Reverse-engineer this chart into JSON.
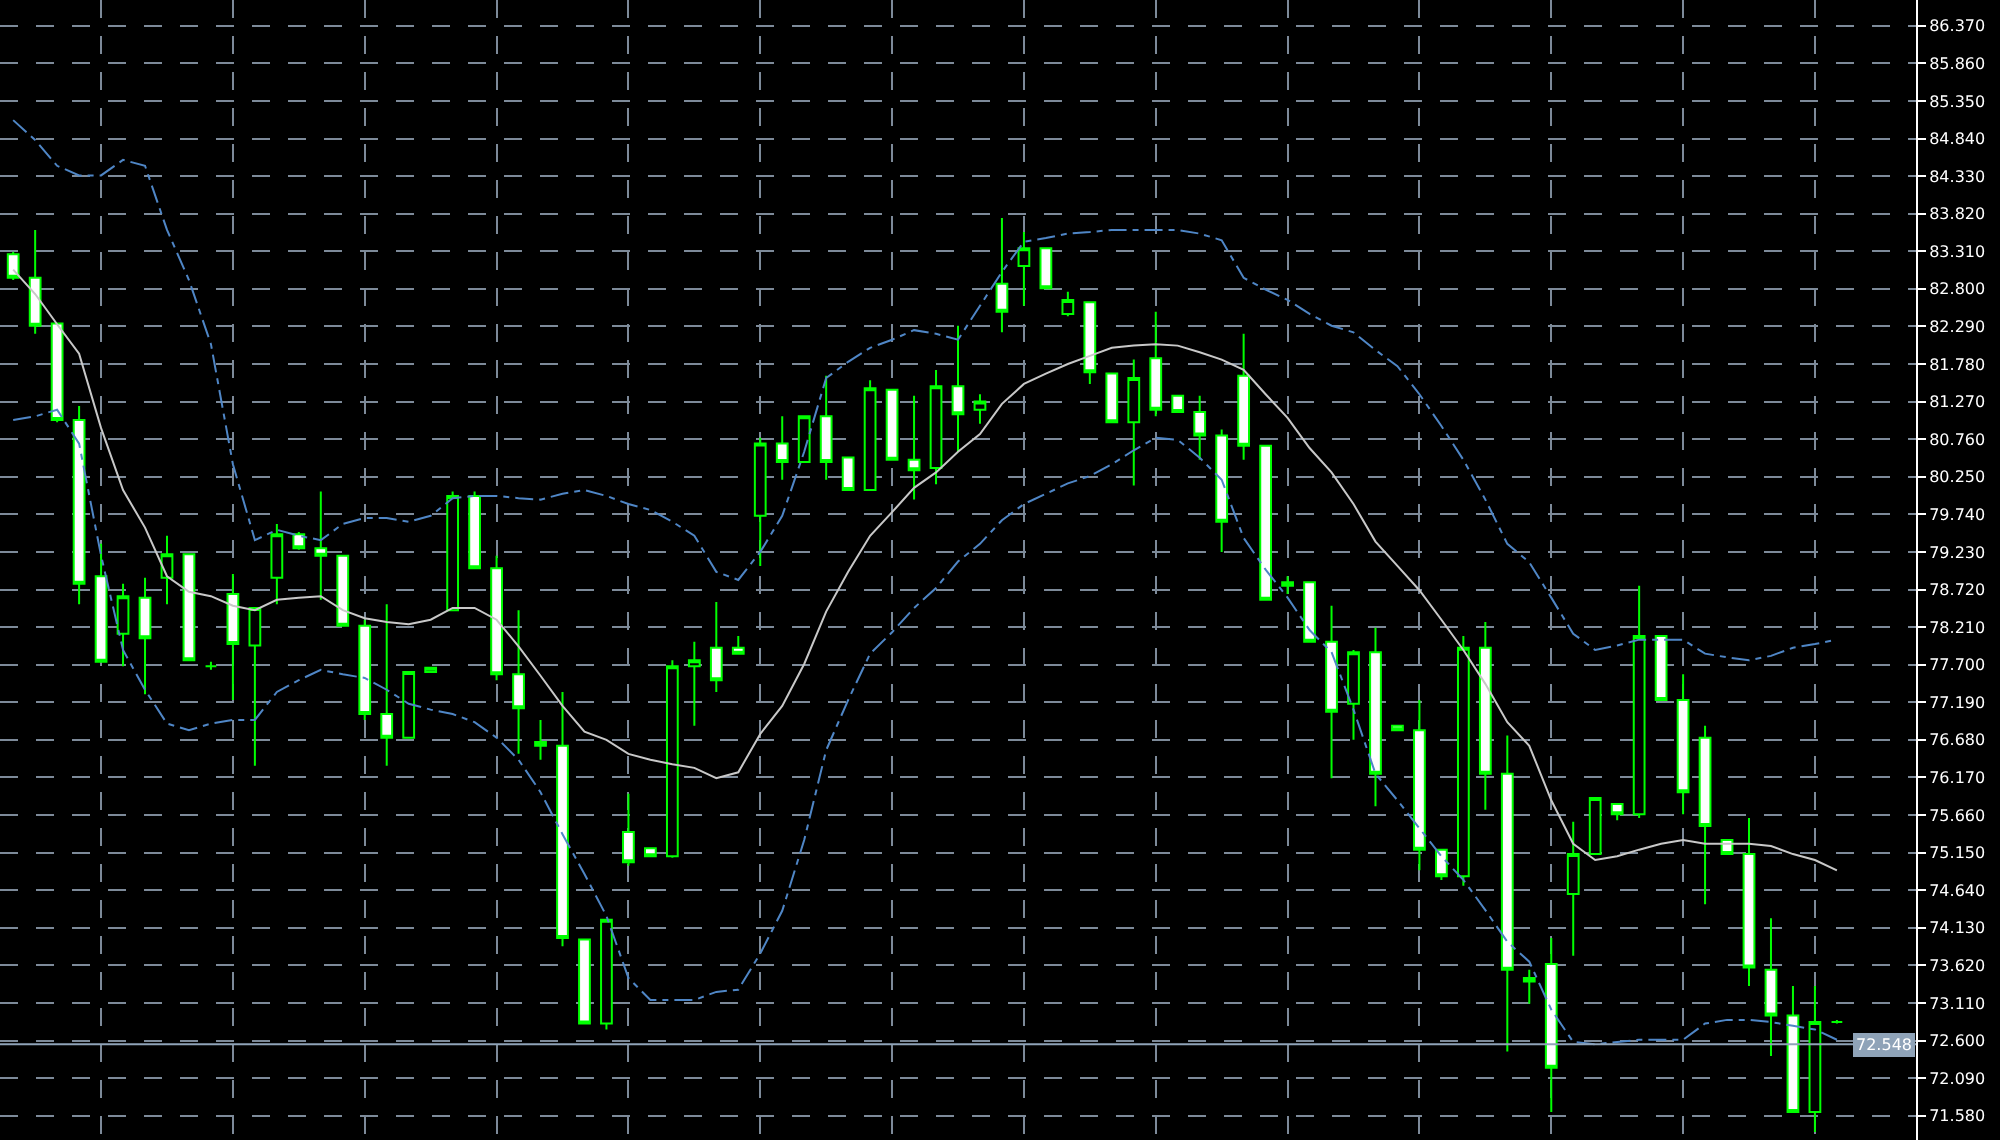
{
  "chart_data": {
    "type": "candlestick",
    "categories": [
      null,
      null,
      null,
      null,
      null,
      null,
      null,
      null,
      null,
      null,
      null,
      null,
      null,
      null,
      null,
      null,
      null,
      null,
      null,
      null,
      null,
      null,
      null,
      null,
      null,
      null,
      null,
      null,
      null,
      null,
      null,
      null,
      null,
      null,
      null,
      null,
      null,
      null,
      null,
      null,
      null,
      null,
      null,
      null,
      null,
      null,
      null,
      null,
      null,
      null,
      null,
      null,
      null,
      null,
      null,
      null,
      null,
      null,
      null,
      null,
      null,
      null,
      null,
      null,
      null,
      null,
      null,
      null,
      null,
      null,
      null,
      null,
      null,
      null,
      null,
      null,
      null,
      null,
      null,
      null,
      null,
      null,
      null,
      null
    ],
    "ohlc": [
      [
        83.27,
        83.3,
        82.92,
        82.95
      ],
      [
        82.95,
        83.6,
        82.19,
        82.3
      ],
      [
        82.33,
        82.33,
        80.99,
        81.02
      ],
      [
        81.02,
        81.21,
        78.52,
        78.8
      ],
      [
        78.9,
        79.34,
        77.74,
        77.74
      ],
      [
        78.12,
        78.8,
        77.68,
        78.63
      ],
      [
        78.61,
        78.88,
        77.3,
        78.06
      ],
      [
        78.88,
        79.45,
        78.52,
        79.2
      ],
      [
        79.2,
        79.2,
        77.76,
        77.76
      ],
      [
        77.68,
        77.74,
        77.63,
        77.68
      ],
      [
        78.66,
        78.93,
        77.22,
        77.98
      ],
      [
        77.96,
        78.47,
        76.33,
        78.47
      ],
      [
        78.88,
        79.61,
        78.52,
        79.47
      ],
      [
        79.47,
        79.5,
        79.26,
        79.28
      ],
      [
        79.28,
        80.05,
        78.58,
        79.18
      ],
      [
        79.18,
        79.18,
        78.23,
        78.23
      ],
      [
        78.23,
        78.31,
        76.95,
        77.03
      ],
      [
        77.03,
        78.52,
        76.33,
        76.71
      ],
      [
        76.71,
        77.6,
        76.71,
        77.6
      ],
      [
        77.6,
        77.66,
        77.6,
        77.66
      ],
      [
        78.44,
        80.05,
        78.44,
        79.99
      ],
      [
        79.99,
        80.05,
        79.01,
        79.01
      ],
      [
        79.01,
        79.18,
        77.49,
        77.57
      ],
      [
        77.57,
        78.44,
        76.49,
        77.11
      ],
      [
        76.65,
        76.95,
        76.41,
        76.6
      ],
      [
        76.6,
        77.33,
        73.88,
        73.99
      ],
      [
        73.97,
        73.97,
        72.83,
        72.83
      ],
      [
        72.83,
        74.24,
        72.75,
        74.24
      ],
      [
        75.43,
        75.95,
        74.97,
        75.02
      ],
      [
        75.21,
        75.21,
        75.1,
        75.1
      ],
      [
        75.1,
        77.76,
        75.08,
        77.68
      ],
      [
        77.68,
        78.01,
        76.87,
        77.76
      ],
      [
        77.93,
        78.55,
        77.33,
        77.49
      ],
      [
        77.93,
        78.09,
        77.85,
        77.85
      ],
      [
        79.72,
        80.78,
        79.04,
        80.7
      ],
      [
        80.7,
        81.07,
        80.21,
        80.45
      ],
      [
        80.45,
        81.07,
        80.45,
        81.07
      ],
      [
        81.07,
        81.62,
        80.21,
        80.45
      ],
      [
        80.51,
        80.51,
        80.07,
        80.07
      ],
      [
        80.07,
        81.56,
        80.07,
        81.45
      ],
      [
        81.43,
        81.43,
        80.48,
        80.48
      ],
      [
        80.48,
        81.35,
        79.94,
        80.34
      ],
      [
        80.37,
        81.7,
        80.15,
        81.48
      ],
      [
        81.48,
        82.3,
        80.59,
        81.1
      ],
      [
        81.16,
        81.37,
        80.97,
        81.27
      ],
      [
        82.87,
        83.76,
        82.21,
        82.49
      ],
      [
        83.11,
        83.57,
        82.57,
        83.35
      ],
      [
        83.35,
        83.35,
        82.81,
        82.81
      ],
      [
        82.46,
        82.76,
        82.43,
        82.65
      ],
      [
        82.62,
        82.62,
        81.51,
        81.67
      ],
      [
        81.65,
        81.65,
        80.99,
        80.99
      ],
      [
        80.99,
        81.84,
        80.13,
        81.59
      ],
      [
        81.86,
        82.49,
        81.07,
        81.16
      ],
      [
        81.35,
        81.35,
        81.13,
        81.13
      ],
      [
        81.13,
        81.35,
        80.48,
        80.81
      ],
      [
        80.81,
        80.89,
        79.23,
        79.64
      ],
      [
        81.62,
        82.19,
        80.48,
        80.67
      ],
      [
        80.67,
        80.67,
        78.58,
        78.58
      ],
      [
        78.82,
        78.9,
        78.66,
        78.77
      ],
      [
        78.82,
        78.82,
        78.01,
        78.01
      ],
      [
        78.01,
        78.5,
        76.16,
        77.06
      ],
      [
        77.17,
        77.9,
        76.68,
        77.87
      ],
      [
        77.87,
        78.2,
        75.78,
        76.22
      ],
      [
        76.87,
        76.87,
        76.81,
        76.81
      ],
      [
        76.81,
        77.22,
        74.91,
        75.19
      ],
      [
        75.19,
        75.19,
        74.78,
        74.83
      ],
      [
        74.83,
        78.09,
        74.7,
        77.93
      ],
      [
        77.93,
        78.28,
        75.73,
        76.22
      ],
      [
        76.22,
        76.74,
        72.45,
        73.56
      ],
      [
        73.45,
        73.56,
        73.1,
        73.4
      ],
      [
        73.64,
        73.99,
        71.63,
        72.23
      ],
      [
        74.59,
        75.57,
        73.75,
        75.13
      ],
      [
        75.13,
        75.89,
        75.13,
        75.89
      ],
      [
        75.81,
        75.81,
        75.59,
        75.67
      ],
      [
        75.67,
        78.77,
        75.62,
        78.09
      ],
      [
        78.09,
        78.09,
        77.22,
        77.22
      ],
      [
        77.22,
        77.57,
        75.67,
        75.97
      ],
      [
        76.71,
        76.87,
        74.45,
        75.51
      ],
      [
        75.32,
        75.32,
        75.13,
        75.13
      ],
      [
        75.13,
        75.62,
        73.34,
        73.59
      ],
      [
        73.56,
        74.26,
        72.39,
        72.94
      ],
      [
        72.94,
        73.34,
        71.63,
        71.63
      ],
      [
        71.63,
        73.34,
        71.36,
        72.85
      ],
      [
        72.85,
        72.88,
        72.83,
        72.85
      ]
    ],
    "series": [
      {
        "type": "line",
        "color": "#4f86c6",
        "line_style": "dashed",
        "values": [
          85.09,
          84.82,
          84.47,
          84.34,
          84.34,
          84.55,
          84.47,
          83.6,
          82.92,
          82.05,
          80.42,
          79.39,
          79.53,
          79.45,
          79.39,
          79.61,
          79.69,
          79.69,
          79.64,
          79.72,
          79.96,
          79.99,
          79.99,
          79.96,
          79.94,
          80.02,
          80.07,
          79.99,
          79.88,
          79.8,
          79.64,
          79.45,
          78.96,
          78.85,
          79.23,
          79.72,
          80.59,
          81.59,
          81.81,
          82.0,
          82.11,
          82.24,
          82.19,
          82.11,
          82.57,
          83.03,
          83.44,
          83.49,
          83.55,
          83.57,
          83.6,
          83.6,
          83.6,
          83.6,
          83.55,
          83.46,
          82.95,
          82.79,
          82.65,
          82.46,
          82.3,
          82.21,
          81.97,
          81.75,
          81.37,
          80.94,
          80.48,
          79.94,
          79.34,
          79.09,
          78.61,
          78.12,
          77.9,
          77.96,
          78.04,
          78.04,
          78.04,
          77.85,
          77.8,
          77.76,
          77.82,
          77.93,
          77.98,
          78.04
        ]
      },
      {
        "type": "line",
        "color": "#c8c8c8",
        "line_style": "solid",
        "values": [
          83.06,
          82.73,
          82.32,
          81.92,
          80.91,
          80.07,
          79.56,
          78.9,
          78.69,
          78.63,
          78.5,
          78.44,
          78.58,
          78.61,
          78.63,
          78.44,
          78.33,
          78.28,
          78.25,
          78.31,
          78.47,
          78.47,
          78.31,
          77.95,
          77.55,
          77.14,
          76.79,
          76.68,
          76.49,
          76.41,
          76.35,
          76.3,
          76.16,
          76.24,
          76.76,
          77.14,
          77.71,
          78.42,
          78.96,
          79.45,
          79.77,
          80.1,
          80.31,
          80.59,
          80.83,
          81.24,
          81.51,
          81.65,
          81.78,
          81.89,
          82.0,
          82.03,
          82.05,
          82.03,
          81.94,
          81.84,
          81.7,
          81.37,
          81.05,
          80.64,
          80.31,
          79.88,
          79.37,
          79.04,
          78.71,
          78.31,
          77.9,
          77.44,
          76.92,
          76.6,
          75.86,
          75.27,
          75.05,
          75.1,
          75.19,
          75.27,
          75.32,
          75.27,
          75.27,
          75.27,
          75.24,
          75.13,
          75.05,
          74.91
        ]
      },
      {
        "type": "line",
        "color": "#4f86c6",
        "line_style": "dashed",
        "values": [
          81.02,
          81.07,
          81.16,
          80.7,
          79.18,
          77.9,
          77.36,
          76.9,
          76.81,
          76.9,
          76.95,
          76.95,
          77.33,
          77.49,
          77.63,
          77.57,
          77.52,
          77.36,
          77.17,
          77.09,
          77.03,
          76.92,
          76.71,
          76.41,
          75.97,
          75.4,
          74.86,
          74.29,
          73.45,
          73.15,
          73.15,
          73.15,
          73.26,
          73.29,
          73.78,
          74.36,
          75.32,
          76.54,
          77.22,
          77.85,
          78.14,
          78.47,
          78.74,
          79.1,
          79.34,
          79.66,
          79.88,
          80.02,
          80.16,
          80.26,
          80.42,
          80.61,
          80.78,
          80.75,
          80.51,
          80.21,
          79.42,
          78.99,
          78.61,
          78.17,
          77.87,
          77.09,
          76.22,
          75.86,
          75.48,
          75.1,
          74.78,
          74.37,
          73.94,
          73.67,
          73.02,
          72.58,
          72.55,
          72.58,
          72.61,
          72.61,
          72.61,
          72.83,
          72.88,
          72.88,
          72.85,
          72.8,
          72.75,
          72.61
        ]
      }
    ],
    "ylim": [
      71.25,
      86.72
    ],
    "yticks": [
      {
        "value": 86.37,
        "label": "86.370"
      },
      {
        "value": 85.86,
        "label": "85.860"
      },
      {
        "value": 85.35,
        "label": "85.350"
      },
      {
        "value": 84.84,
        "label": "84.840"
      },
      {
        "value": 84.33,
        "label": "84.330"
      },
      {
        "value": 83.82,
        "label": "83.820"
      },
      {
        "value": 83.31,
        "label": "83.310"
      },
      {
        "value": 82.8,
        "label": "82.800"
      },
      {
        "value": 82.29,
        "label": "82.290"
      },
      {
        "value": 81.78,
        "label": "81.780"
      },
      {
        "value": 81.27,
        "label": "81.270"
      },
      {
        "value": 80.76,
        "label": "80.760"
      },
      {
        "value": 80.25,
        "label": "80.250"
      },
      {
        "value": 79.74,
        "label": "79.740"
      },
      {
        "value": 79.23,
        "label": "79.230"
      },
      {
        "value": 78.72,
        "label": "78.720"
      },
      {
        "value": 78.21,
        "label": "78.210"
      },
      {
        "value": 77.7,
        "label": "77.700"
      },
      {
        "value": 77.19,
        "label": "77.190"
      },
      {
        "value": 76.68,
        "label": "76.680"
      },
      {
        "value": 76.17,
        "label": "76.170"
      },
      {
        "value": 75.66,
        "label": "75.660"
      },
      {
        "value": 75.15,
        "label": "75.150"
      },
      {
        "value": 74.64,
        "label": "74.640"
      },
      {
        "value": 74.13,
        "label": "74.130"
      },
      {
        "value": 73.62,
        "label": "73.620"
      },
      {
        "value": 73.11,
        "label": "73.110"
      },
      {
        "value": 72.6,
        "label": "72.600"
      },
      {
        "value": 72.09,
        "label": "72.090"
      },
      {
        "value": 71.58,
        "label": "71.580"
      }
    ],
    "ref_lines": [
      {
        "axis": "y",
        "value": 72.548,
        "label": "72.548",
        "color": "#8fa3b8"
      }
    ],
    "grid": true,
    "tick_labels": "y"
  }
}
